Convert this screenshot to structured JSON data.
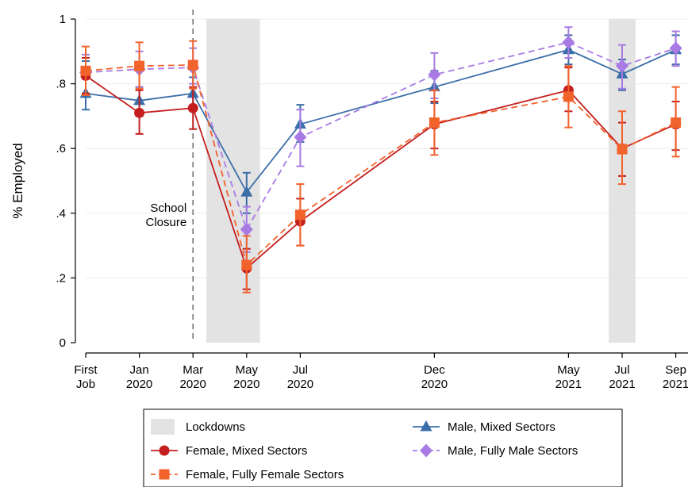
{
  "chart_data": {
    "type": "line",
    "ylabel": "% Employed",
    "ylim": [
      0,
      1
    ],
    "yticks": [
      {
        "value": 0,
        "label": "0"
      },
      {
        "value": 0.2,
        "label": ".2"
      },
      {
        "value": 0.4,
        "label": ".4"
      },
      {
        "value": 0.6,
        "label": ".6"
      },
      {
        "value": 0.8,
        "label": ".8"
      },
      {
        "value": 1,
        "label": "1"
      }
    ],
    "xticks": [
      {
        "x": 0,
        "line1": "First",
        "line2": "Job"
      },
      {
        "x": 2,
        "line1": "Jan",
        "line2": "2020"
      },
      {
        "x": 4,
        "line1": "Mar",
        "line2": "2020"
      },
      {
        "x": 6,
        "line1": "May",
        "line2": "2020"
      },
      {
        "x": 8,
        "line1": "Jul",
        "line2": "2020"
      },
      {
        "x": 13,
        "line1": "Dec",
        "line2": "2020"
      },
      {
        "x": 18,
        "line1": "May",
        "line2": "2021"
      },
      {
        "x": 20,
        "line1": "Jul",
        "line2": "2021"
      },
      {
        "x": 22,
        "line1": "Sep",
        "line2": "2021"
      }
    ],
    "grid": true,
    "lockdowns": [
      [
        4.5,
        6.5
      ],
      [
        19.5,
        20.5
      ]
    ],
    "school_closure": {
      "x": 4,
      "line1": "School",
      "line2": "Closure"
    },
    "series": [
      {
        "name": "Male, Mixed Sectors",
        "color": "#3a6ea8",
        "dash": "solid",
        "marker": "triangle",
        "points": [
          {
            "x": 0,
            "y": 0.77,
            "lo": 0.72,
            "hi": 0.87
          },
          {
            "x": 2,
            "y": 0.748,
            "lo": 0.7,
            "hi": 0.79
          },
          {
            "x": 4,
            "y": 0.77,
            "lo": 0.72,
            "hi": 0.82
          },
          {
            "x": 6,
            "y": 0.465,
            "lo": 0.4,
            "hi": 0.525
          },
          {
            "x": 8,
            "y": 0.675,
            "lo": 0.62,
            "hi": 0.735
          },
          {
            "x": 13,
            "y": 0.79,
            "lo": 0.74,
            "hi": 0.84
          },
          {
            "x": 18,
            "y": 0.905,
            "lo": 0.86,
            "hi": 0.95
          },
          {
            "x": 20,
            "y": 0.83,
            "lo": 0.78,
            "hi": 0.875
          },
          {
            "x": 22,
            "y": 0.905,
            "lo": 0.86,
            "hi": 0.95
          }
        ]
      },
      {
        "name": "Male, Fully Male Sectors",
        "color": "#a77be3",
        "dash": "dashed",
        "marker": "diamond",
        "points": [
          {
            "x": 0,
            "y": 0.835,
            "lo": 0.77,
            "hi": 0.89
          },
          {
            "x": 2,
            "y": 0.845,
            "lo": 0.79,
            "hi": 0.9
          },
          {
            "x": 4,
            "y": 0.85,
            "lo": 0.8,
            "hi": 0.91
          },
          {
            "x": 6,
            "y": 0.35,
            "lo": 0.28,
            "hi": 0.42
          },
          {
            "x": 8,
            "y": 0.635,
            "lo": 0.545,
            "hi": 0.72
          },
          {
            "x": 13,
            "y": 0.828,
            "lo": 0.755,
            "hi": 0.895
          },
          {
            "x": 18,
            "y": 0.928,
            "lo": 0.88,
            "hi": 0.975
          },
          {
            "x": 20,
            "y": 0.855,
            "lo": 0.785,
            "hi": 0.92
          },
          {
            "x": 22,
            "y": 0.91,
            "lo": 0.855,
            "hi": 0.962
          }
        ]
      },
      {
        "name": "Female, Mixed Sectors",
        "color": "#c41e1e",
        "dash": "solid",
        "marker": "circle",
        "points": [
          {
            "x": 0,
            "y": 0.825,
            "lo": 0.77,
            "hi": 0.88
          },
          {
            "x": 2,
            "y": 0.71,
            "lo": 0.645,
            "hi": 0.78
          },
          {
            "x": 4,
            "y": 0.725,
            "lo": 0.66,
            "hi": 0.79
          },
          {
            "x": 6,
            "y": 0.23,
            "lo": 0.165,
            "hi": 0.29
          },
          {
            "x": 8,
            "y": 0.375,
            "lo": 0.3,
            "hi": 0.445
          },
          {
            "x": 13,
            "y": 0.675,
            "lo": 0.6,
            "hi": 0.745
          },
          {
            "x": 18,
            "y": 0.78,
            "lo": 0.715,
            "hi": 0.85
          },
          {
            "x": 20,
            "y": 0.6,
            "lo": 0.515,
            "hi": 0.68
          },
          {
            "x": 22,
            "y": 0.675,
            "lo": 0.595,
            "hi": 0.745
          }
        ]
      },
      {
        "name": "Female, Fully Female Sectors",
        "color": "#f2622b",
        "dash": "dashed",
        "marker": "square",
        "points": [
          {
            "x": 0,
            "y": 0.84,
            "lo": 0.765,
            "hi": 0.915
          },
          {
            "x": 2,
            "y": 0.855,
            "lo": 0.785,
            "hi": 0.928
          },
          {
            "x": 4,
            "y": 0.858,
            "lo": 0.785,
            "hi": 0.932
          },
          {
            "x": 6,
            "y": 0.24,
            "lo": 0.155,
            "hi": 0.33
          },
          {
            "x": 8,
            "y": 0.395,
            "lo": 0.3,
            "hi": 0.49
          },
          {
            "x": 13,
            "y": 0.68,
            "lo": 0.58,
            "hi": 0.78
          },
          {
            "x": 18,
            "y": 0.76,
            "lo": 0.665,
            "hi": 0.855
          },
          {
            "x": 20,
            "y": 0.598,
            "lo": 0.49,
            "hi": 0.715
          },
          {
            "x": 22,
            "y": 0.68,
            "lo": 0.575,
            "hi": 0.79
          }
        ]
      }
    ],
    "legend": {
      "placement": "bottom",
      "items": [
        {
          "label": "Lockdowns",
          "kind": "band"
        },
        {
          "label": "Male, Mixed Sectors",
          "series": 0
        },
        {
          "label": "Female, Mixed Sectors",
          "series": 2
        },
        {
          "label": "Male, Fully Male Sectors",
          "series": 1
        },
        {
          "label": "Female, Fully Female Sectors",
          "series": 3
        }
      ]
    }
  }
}
